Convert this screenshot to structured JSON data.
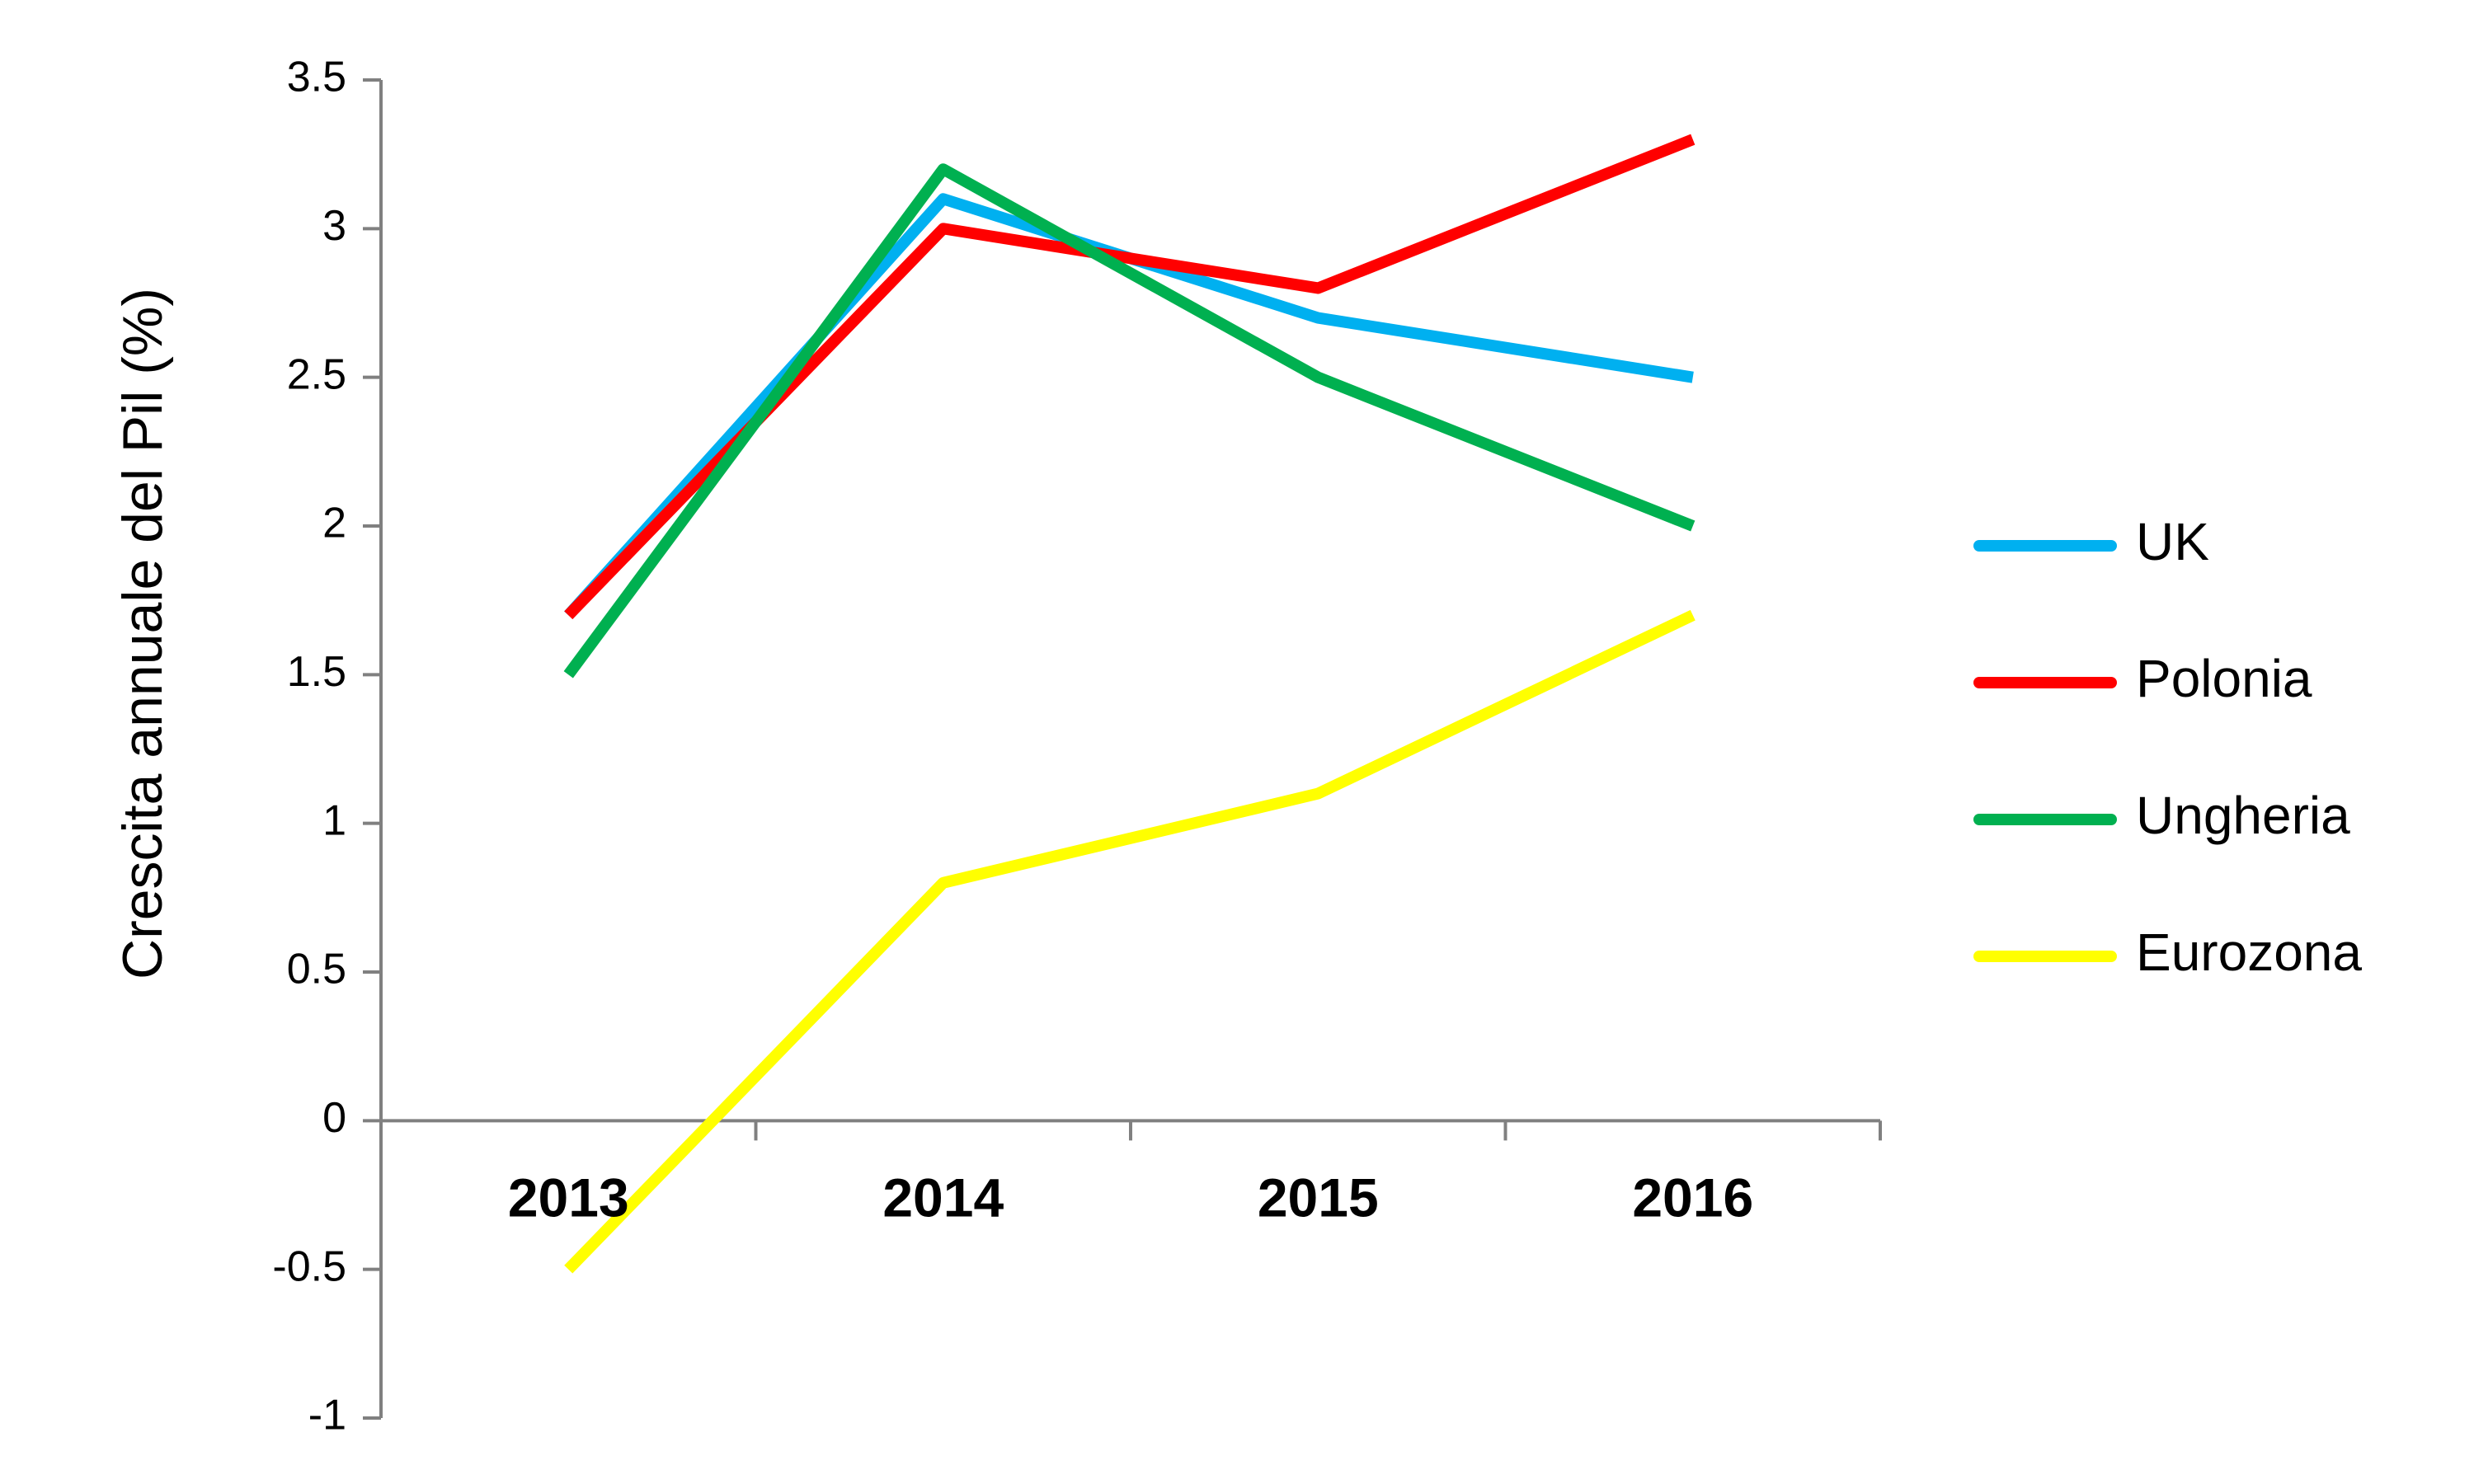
{
  "chart_data": {
    "type": "line",
    "categories": [
      "2013",
      "2014",
      "2015",
      "2016"
    ],
    "series": [
      {
        "name": "UK",
        "values": [
          1.7,
          3.1,
          2.7,
          2.5
        ],
        "color": "#00B0F0"
      },
      {
        "name": "Polonia",
        "values": [
          1.7,
          3.0,
          2.8,
          3.3
        ],
        "color": "#FF0000"
      },
      {
        "name": "Ungheria",
        "values": [
          1.5,
          3.2,
          2.5,
          2.0
        ],
        "color": "#00B050"
      },
      {
        "name": "Eurozona",
        "values": [
          -0.5,
          0.8,
          1.1,
          1.7
        ],
        "color": "#FFFF00"
      }
    ],
    "ylabel": "Crescita annuale del Pil (%)",
    "ylim": [
      -1,
      3.5
    ],
    "yticks": [
      3.5,
      3,
      2.5,
      2,
      1.5,
      1,
      0.5,
      0,
      -0.5,
      -1
    ],
    "ytick_labels": [
      "3.5",
      "3",
      "2.5",
      "2",
      "1.5",
      "1",
      "0.5",
      "0",
      "-0.5",
      "-1"
    ],
    "grid": false,
    "legend_position": "right",
    "axis_color": "#808080"
  }
}
